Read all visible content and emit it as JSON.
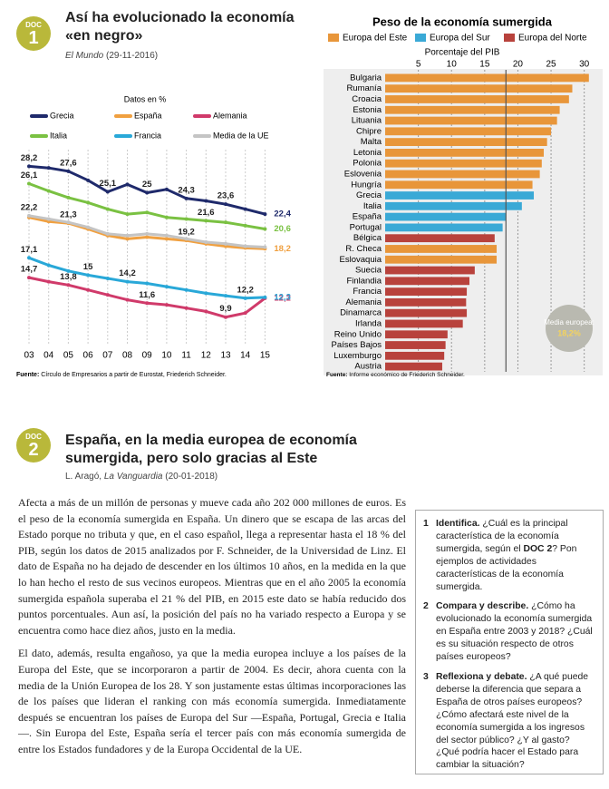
{
  "doc1": {
    "badge": {
      "label": "DOC",
      "number": "1"
    },
    "title": "Así ha evolucionado la economía «en negro»",
    "source": {
      "publication": "El Mundo",
      "date": " (29-11-2016)"
    }
  },
  "chart_data": [
    {
      "type": "line",
      "legend_title": "Datos en %",
      "categories": [
        "03",
        "04",
        "05",
        "06",
        "07",
        "08",
        "09",
        "10",
        "11",
        "12",
        "13",
        "14",
        "15"
      ],
      "ylim": [
        8,
        30
      ],
      "series": [
        {
          "name": "Grecia",
          "color": "#1f2a6b",
          "values": [
            28.2,
            28.0,
            27.6,
            26.5,
            25.1,
            26.0,
            25.0,
            25.4,
            24.3,
            24.0,
            23.6,
            23.0,
            22.4
          ],
          "value_labels": [
            "28,2",
            null,
            "27,6",
            null,
            "25,1",
            null,
            "25",
            null,
            "24,3",
            null,
            "23,6",
            null,
            "22,4"
          ]
        },
        {
          "name": "España",
          "color": "#f0a040",
          "values": [
            22.0,
            21.5,
            21.3,
            20.6,
            19.8,
            19.4,
            19.6,
            19.4,
            19.2,
            18.8,
            18.5,
            18.3,
            18.2
          ],
          "value_labels": [
            null,
            null,
            "21,3",
            null,
            null,
            null,
            null,
            null,
            "19,2",
            null,
            null,
            null,
            "18,2"
          ]
        },
        {
          "name": "Alemania",
          "color": "#d03a6a",
          "values": [
            14.7,
            14.2,
            13.8,
            13.2,
            12.6,
            12.0,
            11.6,
            11.4,
            11.0,
            10.6,
            9.9,
            10.4,
            12.2
          ],
          "value_labels": [
            "14,7",
            null,
            "13,8",
            null,
            null,
            null,
            "11,6",
            null,
            null,
            null,
            "9,9",
            null,
            "12,2"
          ]
        },
        {
          "name": "Italia",
          "color": "#7ac142",
          "values": [
            26.1,
            25.2,
            24.4,
            23.8,
            23.0,
            22.4,
            22.6,
            22.0,
            21.8,
            21.6,
            21.4,
            21.0,
            20.6
          ],
          "value_labels": [
            "26,1",
            null,
            null,
            null,
            null,
            null,
            null,
            null,
            null,
            "21,6",
            null,
            null,
            "20,6"
          ]
        },
        {
          "name": "Francia",
          "color": "#29a8d8",
          "values": [
            17.1,
            16.2,
            15.5,
            15.0,
            14.6,
            14.2,
            14.0,
            13.6,
            13.2,
            12.8,
            12.5,
            12.2,
            12.3
          ],
          "value_labels": [
            "17,1",
            null,
            null,
            "15",
            null,
            "14,2",
            null,
            null,
            null,
            null,
            null,
            "12,2",
            "12,3"
          ]
        },
        {
          "name": "Media de la UE",
          "color": "#c4c4c4",
          "values": [
            22.2,
            21.8,
            21.4,
            20.8,
            20.0,
            19.8,
            20.0,
            19.8,
            19.4,
            19.0,
            18.8,
            18.5,
            18.4
          ],
          "value_labels": [
            "22,2",
            null,
            null,
            null,
            null,
            null,
            null,
            null,
            null,
            null,
            null,
            null,
            null
          ]
        }
      ],
      "source": {
        "prefix": "Fuente:",
        "text": " Círculo de Empresarios a partir de Eurostat, Friederich Schneider."
      }
    },
    {
      "type": "bar",
      "orientation": "horizontal",
      "title": "Peso de la economía sumergida",
      "legend": [
        {
          "name": "Europa del Este",
          "color": "#e8963a"
        },
        {
          "name": "Europa del Sur",
          "color": "#3aa9d6"
        },
        {
          "name": "Europa del Norte",
          "color": "#b8423c"
        }
      ],
      "xlabel": "Porcentaje del PIB",
      "categories": [
        "Bulgaria",
        "Rumanía",
        "Croacia",
        "Estonia",
        "Lituania",
        "Chipre",
        "Malta",
        "Letonia",
        "Polonia",
        "Eslovenia",
        "Hungría",
        "Grecia",
        "Italia",
        "España",
        "Portugal",
        "Bélgica",
        "R. Checa",
        "Eslovaquia",
        "Suecia",
        "Finlandia",
        "Francia",
        "Alemania",
        "Dinamarca",
        "Irlanda",
        "Reino Unido",
        "Países Bajos",
        "Luxemburgo",
        "Austria"
      ],
      "values": [
        30.7,
        28.2,
        27.7,
        26.3,
        25.9,
        25.0,
        24.4,
        23.9,
        23.6,
        23.3,
        22.2,
        22.4,
        20.6,
        18.2,
        17.7,
        16.5,
        16.8,
        16.8,
        13.5,
        12.7,
        12.3,
        12.2,
        12.3,
        11.7,
        9.4,
        9.1,
        8.9,
        8.6
      ],
      "bar_colors": [
        "#e8963a",
        "#e8963a",
        "#e8963a",
        "#e8963a",
        "#e8963a",
        "#e8963a",
        "#e8963a",
        "#e8963a",
        "#e8963a",
        "#e8963a",
        "#e8963a",
        "#3aa9d6",
        "#3aa9d6",
        "#3aa9d6",
        "#3aa9d6",
        "#b8423c",
        "#e8963a",
        "#e8963a",
        "#b8423c",
        "#b8423c",
        "#b8423c",
        "#b8423c",
        "#b8423c",
        "#b8423c",
        "#b8423c",
        "#b8423c",
        "#b8423c",
        "#b8423c"
      ],
      "xlim": [
        0,
        31
      ],
      "xticks": [
        5,
        10,
        15,
        20,
        25,
        30
      ],
      "grid": true,
      "annotation": {
        "text": "Media europea:",
        "value": 18.2,
        "label": "18,2%"
      },
      "source": {
        "prefix": "Fuente:",
        "text": " Informe económico de Friederich Schneider."
      }
    }
  ],
  "doc2": {
    "badge": {
      "label": "DOC",
      "number": "2"
    },
    "title": "España, en la media europea de economía sumergida, pero solo gracias al Este",
    "source": {
      "author": "L. Aragó, ",
      "publication": "La Vanguardia",
      "date": " (20-01-2018)"
    },
    "paragraphs": [
      "Afecta a más de un millón de personas y mueve cada año 202 000 millones de euros. Es el peso de la economía sumergida en España. Un dinero que se escapa de las arcas del Estado porque no tributa y que, en el caso español, llega a representar hasta el 18 % del PIB, según los datos de 2015 analizados por F. Schneider, de la Universidad de Linz. El dato de España no ha dejado de descender en los últimos 10 años, en la medida en la que lo han hecho el resto de sus vecinos europeos. Mientras que en el año 2005 la economía sumergida española superaba el 21 % del PIB, en 2015 este dato se había reducido dos puntos porcentuales. Aun así, la posición del país no ha variado respecto a Europa y se encuentra como hace diez años, justo en la media.",
      "El dato, además, resulta engañoso, ya que la media europea incluye a los países de la Europa del Este, que se incorporaron a partir de 2004. Es decir, ahora cuenta con la media de la Unión Europea de los 28. Y son justamente estas últimas incorporaciones las de los países que lideran el ranking con más economía sumergida. Inmediatamente después se encuentran los países de Europa del Sur —España, Portugal, Grecia e Italia—. Sin Europa del Este, España sería el tercer país con más economía sumergida de entre los Estados fundadores y de la Europa Occidental de la UE."
    ]
  },
  "activities": [
    {
      "number": "1",
      "title": "Identifica.",
      "text": [
        " ¿Cuál es la principal característica de la economía sumergida, según el ",
        "DOC 2",
        "? Pon ejemplos de actividades características de la economía sumergida."
      ]
    },
    {
      "number": "2",
      "title": "Compara y describe.",
      "text": [
        " ¿Cómo ha evolucionado la economía sumergida en España entre 2003 y 2018? ¿Cuál es su situación respecto de otros países europeos?"
      ]
    },
    {
      "number": "3",
      "title": "Reflexiona y debate.",
      "text": [
        " ¿A qué puede deberse la diferencia que separa a España de otros países europeos? ¿Cómo afectará este nivel de la economía sumergida a los ingresos del sector público? ¿Y al gasto? ¿Qué podría hacer el Estado para cambiar la situación?"
      ]
    }
  ]
}
